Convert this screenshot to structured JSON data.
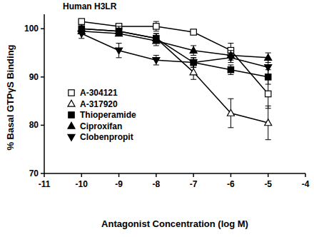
{
  "chart_data": {
    "type": "line",
    "title": "Human H3LR",
    "x_label": "Antagonist Concentration (log M)",
    "y_label": "% Basal GTPγS Binding",
    "xlim": [
      -11,
      -4
    ],
    "xticks": [
      -11,
      -10,
      -9,
      -8,
      -7,
      -6,
      -5,
      -4
    ],
    "ylim": [
      70,
      103
    ],
    "yticks": [
      70,
      80,
      90,
      100
    ],
    "grid": false,
    "legend": "lower left",
    "x": [
      -10,
      -9,
      -8,
      -7,
      -6,
      -5
    ],
    "series": [
      {
        "name": "A-304121",
        "color": "#000000",
        "marker": "square-open",
        "line_style": "solid",
        "values": [
          101.5,
          100.5,
          100.5,
          99.3,
          95.5,
          86.5
        ],
        "errors": [
          0.5,
          0.5,
          1,
          0.5,
          1.5,
          3
        ]
      },
      {
        "name": "A-317920",
        "color": "#000000",
        "marker": "triangle-open",
        "line_style": "solid",
        "values": [
          100,
          99.5,
          98,
          91,
          82.5,
          80.5
        ],
        "errors": [
          0.5,
          1,
          1,
          1.5,
          3,
          3.5
        ]
      },
      {
        "name": "Thioperamide",
        "color": "#000000",
        "marker": "square",
        "line_style": "solid",
        "values": [
          100,
          99.5,
          98,
          93,
          91.5,
          90
        ],
        "errors": [
          0.5,
          0.5,
          1,
          1,
          1,
          1.5
        ]
      },
      {
        "name": "Ciproxifan",
        "color": "#000000",
        "marker": "triangle",
        "line_style": "solid",
        "values": [
          99.5,
          99,
          97.5,
          95.5,
          94.5,
          94
        ],
        "errors": [
          0.5,
          0.5,
          1,
          1,
          1,
          1
        ]
      },
      {
        "name": "Clobenpropit",
        "color": "#000000",
        "marker": "triangle-down",
        "line_style": "solid",
        "values": [
          99,
          95.5,
          93.5,
          93,
          94,
          92
        ],
        "errors": [
          1,
          1.5,
          1,
          1,
          1,
          1.5
        ]
      }
    ]
  }
}
